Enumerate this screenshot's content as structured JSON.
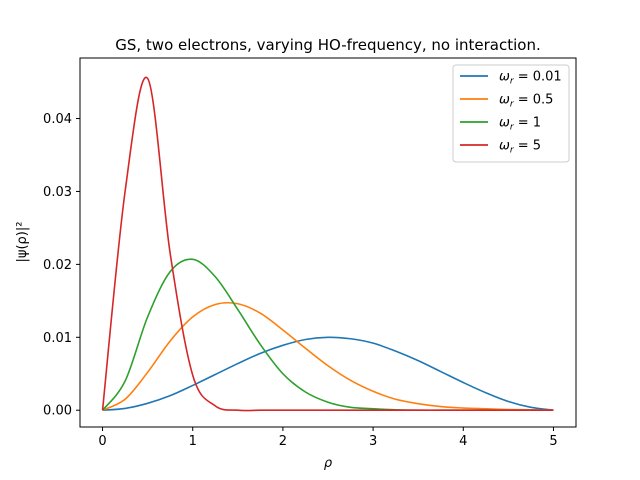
{
  "chart_data": {
    "type": "line",
    "title": "GS, two electrons, varying HO-frequency, no interaction.",
    "xlabel": "ρ",
    "ylabel": "|ψ(ρ)|²",
    "xlim": [
      -0.25,
      5.25
    ],
    "ylim": [
      -0.0023,
      0.0483
    ],
    "xticks": [
      0,
      1,
      2,
      3,
      4,
      5
    ],
    "xtick_labels": [
      "0",
      "1",
      "2",
      "3",
      "4",
      "5"
    ],
    "yticks": [
      0.0,
      0.01,
      0.02,
      0.03,
      0.04
    ],
    "ytick_labels": [
      "0.00",
      "0.01",
      "0.02",
      "0.03",
      "0.04"
    ],
    "grid": false,
    "legend_position": "top-right",
    "x": [
      0,
      0.25,
      0.5,
      0.75,
      1.0,
      1.25,
      1.5,
      1.75,
      2.0,
      2.25,
      2.5,
      2.75,
      3.0,
      3.25,
      3.5,
      3.75,
      4.0,
      4.25,
      4.5,
      4.75,
      5.0
    ],
    "series": [
      {
        "name": "ω_r = 0.01",
        "legend_label": "ω",
        "legend_sub": "r",
        "legend_value": " = 0.01",
        "color": "#1f77b4",
        "values": [
          0.0,
          0.00025,
          0.00095,
          0.002,
          0.0034,
          0.0049,
          0.0064,
          0.0078,
          0.0089,
          0.0097,
          0.01,
          0.0098,
          0.0092,
          0.0081,
          0.0068,
          0.0053,
          0.0038,
          0.0024,
          0.0012,
          0.0004,
          0.0
        ]
      },
      {
        "name": "ω_r = 0.5",
        "legend_label": "ω",
        "legend_sub": "r",
        "legend_value": " = 0.5",
        "color": "#ff7f0e",
        "values": [
          0.0,
          0.0015,
          0.0052,
          0.0095,
          0.0128,
          0.0145,
          0.0146,
          0.0133,
          0.011,
          0.0085,
          0.0061,
          0.0041,
          0.0026,
          0.0015,
          0.0009,
          0.0005,
          0.0003,
          0.0002,
          0.0001,
          5e-05,
          0.0
        ]
      },
      {
        "name": "ω_r = 1",
        "legend_label": "ω",
        "legend_sub": "r",
        "legend_value": " = 1",
        "color": "#2ca02c",
        "values": [
          0.0,
          0.004,
          0.0128,
          0.019,
          0.0207,
          0.0183,
          0.0138,
          0.009,
          0.005,
          0.0025,
          0.0011,
          0.0004,
          0.0002,
          5e-05,
          0.0,
          0.0,
          0.0,
          0.0,
          0.0,
          0.0,
          0.0
        ]
      },
      {
        "name": "ω_r = 5",
        "legend_label": "ω",
        "legend_sub": "r",
        "legend_value": " = 5",
        "color": "#d62728",
        "values": [
          0.0,
          0.03,
          0.0455,
          0.0215,
          0.0048,
          0.0006,
          0.0,
          0.0,
          0.0,
          0.0,
          0.0,
          0.0,
          0.0,
          0.0,
          0.0,
          0.0,
          0.0,
          0.0,
          0.0,
          0.0,
          0.0
        ]
      }
    ]
  }
}
